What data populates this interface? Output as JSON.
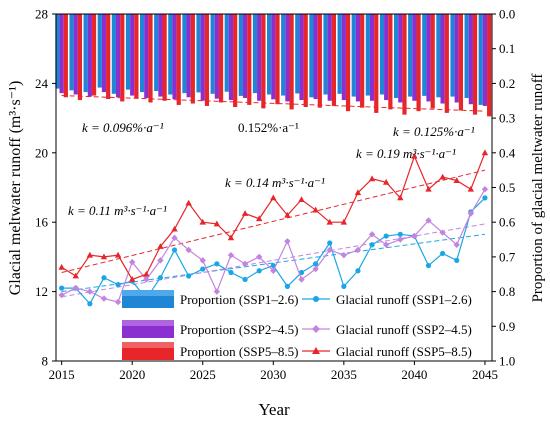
{
  "chart_data": {
    "type": "bar+line",
    "xlabel": "Year",
    "ylabel_left": "Glacial meltwater runoff (m³·s⁻¹)",
    "ylabel_right": "Proportion of glacial meltwater runoff",
    "xticks": [
      "2015",
      "2020",
      "2025",
      "2030",
      "2035",
      "2040",
      "2045"
    ],
    "yticks_left": [
      "8",
      "12",
      "16",
      "20",
      "24",
      "28"
    ],
    "yticks_right": [
      "0.0",
      "0.1",
      "0.2",
      "0.3",
      "0.4",
      "0.5",
      "0.6",
      "0.7",
      "0.8",
      "0.9",
      "1.0"
    ],
    "xlim": [
      2014.6,
      2045.5
    ],
    "ylim_left": [
      8,
      28
    ],
    "ylim_right": [
      0,
      1
    ],
    "right_axis_inverted": true,
    "years": [
      2015,
      2016,
      2017,
      2018,
      2019,
      2020,
      2021,
      2022,
      2023,
      2024,
      2025,
      2026,
      2027,
      2028,
      2029,
      2030,
      2031,
      2032,
      2033,
      2034,
      2035,
      2036,
      2037,
      2038,
      2039,
      2040,
      2041,
      2042,
      2043,
      2044,
      2045
    ],
    "bar_series": [
      {
        "name": "Proportion (SSP1–2.6)",
        "color": "#1f86d6",
        "values": [
          0.215,
          0.22,
          0.225,
          0.212,
          0.23,
          0.218,
          0.225,
          0.222,
          0.232,
          0.228,
          0.226,
          0.23,
          0.224,
          0.236,
          0.228,
          0.232,
          0.235,
          0.229,
          0.24,
          0.232,
          0.23,
          0.238,
          0.235,
          0.232,
          0.242,
          0.238,
          0.236,
          0.24,
          0.238,
          0.242,
          0.262
        ]
      },
      {
        "name": "Proportion (SSP2–4.5)",
        "color": "#8c2fd0",
        "values": [
          0.228,
          0.232,
          0.238,
          0.225,
          0.24,
          0.235,
          0.242,
          0.238,
          0.245,
          0.24,
          0.25,
          0.244,
          0.248,
          0.242,
          0.25,
          0.246,
          0.252,
          0.248,
          0.245,
          0.25,
          0.248,
          0.252,
          0.25,
          0.248,
          0.255,
          0.25,
          0.252,
          0.258,
          0.255,
          0.26,
          0.265
        ]
      },
      {
        "name": "Proportion (SSP5–8.5)",
        "color": "#e8262a",
        "values": [
          0.24,
          0.248,
          0.235,
          0.245,
          0.252,
          0.242,
          0.255,
          0.25,
          0.262,
          0.258,
          0.265,
          0.255,
          0.268,
          0.262,
          0.272,
          0.26,
          0.275,
          0.268,
          0.27,
          0.265,
          0.28,
          0.27,
          0.285,
          0.275,
          0.29,
          0.28,
          0.272,
          0.285,
          0.278,
          0.29,
          0.295
        ]
      }
    ],
    "line_series": [
      {
        "name": "Glacial runoff (SSP1–2.6)",
        "color": "#1aa6e6",
        "marker": "circle",
        "values": [
          12.2,
          12.2,
          11.3,
          12.8,
          12.4,
          12.6,
          11.6,
          12.8,
          14.4,
          12.9,
          13.3,
          13.6,
          13.1,
          12.7,
          13.2,
          13.5,
          12.3,
          13.1,
          13.6,
          14.8,
          12.3,
          13.2,
          14.7,
          15.2,
          15.3,
          15.2,
          13.5,
          14.2,
          13.8,
          16.6,
          17.4
        ]
      },
      {
        "name": "Glacial runoff (SSP2–4.5)",
        "color": "#c583e0",
        "marker": "diamond",
        "values": [
          11.8,
          12.2,
          12.0,
          11.6,
          11.4,
          13.7,
          12.7,
          13.8,
          15.1,
          14.4,
          13.8,
          12.0,
          14.1,
          13.6,
          14.0,
          13.2,
          14.9,
          12.7,
          13.3,
          14.4,
          14.1,
          14.4,
          15.3,
          14.7,
          15.0,
          15.2,
          16.1,
          15.4,
          14.7,
          16.5,
          17.9
        ]
      },
      {
        "name": "Glacial runoff (SSP5–8.5)",
        "color": "#e8262a",
        "marker": "triangle",
        "values": [
          13.4,
          12.9,
          14.1,
          14.0,
          14.1,
          12.7,
          13.0,
          14.6,
          15.6,
          17.1,
          16.0,
          15.9,
          15.1,
          16.5,
          16.2,
          17.4,
          16.4,
          17.3,
          16.7,
          16.0,
          16.0,
          17.7,
          18.5,
          18.3,
          17.4,
          19.8,
          17.9,
          18.6,
          18.4,
          17.9,
          20.0
        ]
      }
    ],
    "trend_lines": [
      {
        "series": "SSP1–2.6",
        "color": "#1aa6e6",
        "y_start": 12.0,
        "y_end": 15.3,
        "axis": "left"
      },
      {
        "series": "SSP2–4.5",
        "color": "#c583e0",
        "y_start": 11.7,
        "y_end": 15.9,
        "axis": "left"
      },
      {
        "series": "SSP5–8.5",
        "color": "#e8262a",
        "y_start": 13.1,
        "y_end": 19.0,
        "axis": "left"
      },
      {
        "series": "SSP5–8.5 proportion",
        "color": "#e8262a",
        "y_start": 0.235,
        "y_end": 0.28,
        "axis": "right"
      }
    ],
    "annotations": [
      {
        "text": "k = 0.096%·a⁻¹",
        "color": "#1aa6e6"
      },
      {
        "text": "0.152%·a⁻¹",
        "color": "#c583e0"
      },
      {
        "text": "k = 0.125%·a⁻¹",
        "color": "#e8262a"
      },
      {
        "text": "k = 0.19 m³·s⁻¹·a⁻¹",
        "color": "#e8262a"
      },
      {
        "text": "k = 0.14 m³·s⁻¹·a⁻¹",
        "color": "#c583e0"
      },
      {
        "text": "k = 0.11 m³·s⁻¹·a⁻¹",
        "color": "#1aa6e6"
      }
    ],
    "legend": {
      "placement": "bottom",
      "bar_items": [
        "Proportion (SSP1–2.6)",
        "Proportion (SSP2–4.5)",
        "Proportion (SSP5–8.5)"
      ],
      "line_items": [
        "Glacial runoff (SSP1–2.6)",
        "Glacial runoff (SSP2–4.5)",
        "Glacial runoff (SSP5–8.5)"
      ]
    }
  }
}
